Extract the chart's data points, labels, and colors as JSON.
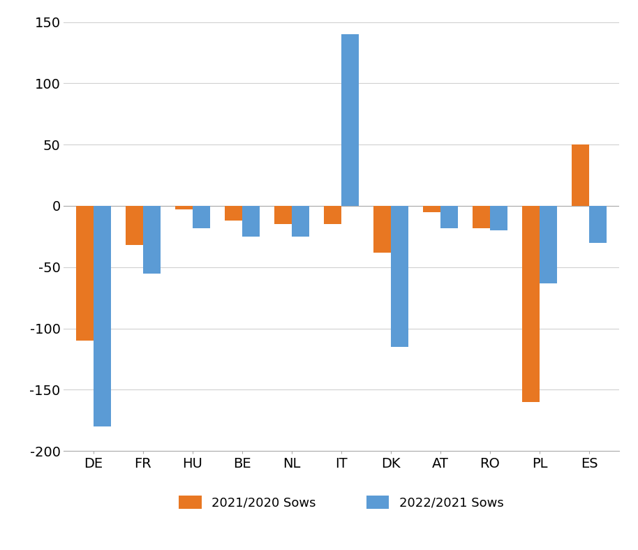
{
  "categories": [
    "DE",
    "FR",
    "HU",
    "BE",
    "NL",
    "IT",
    "DK",
    "AT",
    "RO",
    "PL",
    "ES"
  ],
  "series_2021_2020": [
    -110,
    -32,
    -3,
    -12,
    -15,
    -15,
    -38,
    -5,
    -18,
    -160,
    50
  ],
  "series_2022_2021": [
    -180,
    -55,
    -18,
    -25,
    -25,
    140,
    -115,
    -18,
    -20,
    -63,
    -30
  ],
  "color_2021": "#E87722",
  "color_2022": "#5B9BD5",
  "ylim": [
    -200,
    150
  ],
  "yticks": [
    -200,
    -150,
    -100,
    -50,
    0,
    50,
    100,
    150
  ],
  "legend_labels": [
    "2021/2020 Sows",
    "2022/2021 Sows"
  ],
  "bar_width": 0.35,
  "background_color": "#ffffff",
  "grid_color": "#d0d0d0",
  "figsize": [
    9.14,
    7.88
  ],
  "dpi": 100
}
